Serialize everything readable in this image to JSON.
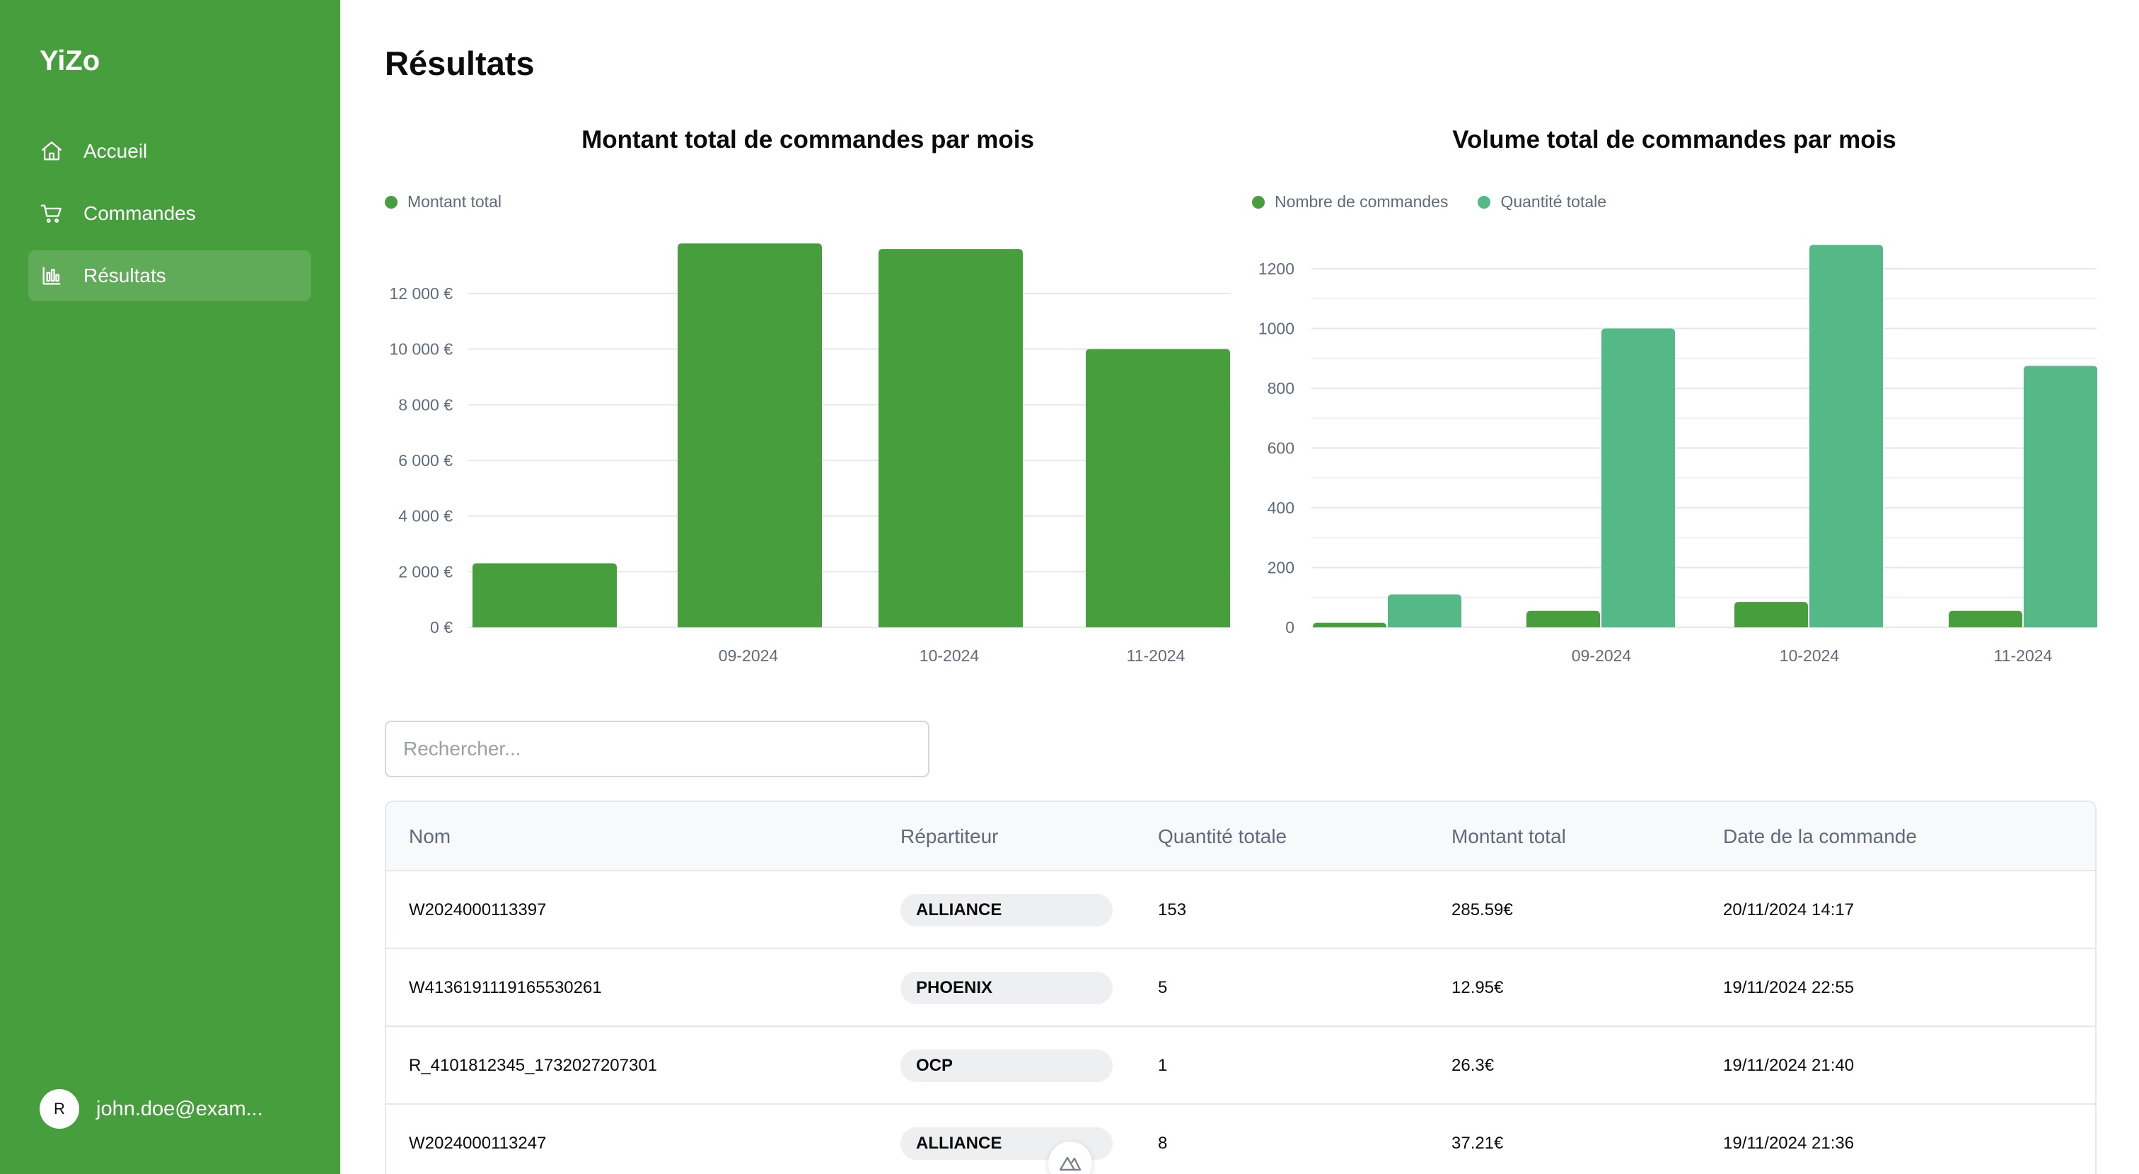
{
  "app": {
    "brand": "YiZo"
  },
  "sidebar": {
    "items": [
      {
        "label": "Accueil",
        "icon": "home-icon"
      },
      {
        "label": "Commandes",
        "icon": "cart-icon"
      },
      {
        "label": "Résultats",
        "icon": "bar-chart-icon",
        "active": true
      }
    ],
    "user": {
      "initial": "R",
      "email": "john.doe@exam..."
    }
  },
  "main": {
    "title": "Résultats"
  },
  "colors": {
    "sidebar": "#469e3d",
    "primary_bar": "#469e3d",
    "secondary_bar": "#54b887"
  },
  "chart_data": [
    {
      "type": "bar",
      "title": "Montant total de commandes par mois",
      "categories": [
        "",
        "09-2024",
        "10-2024",
        "11-2024"
      ],
      "series": [
        {
          "name": "Montant total",
          "values": [
            2300,
            13800,
            13600,
            10000
          ]
        }
      ],
      "y_ticks": [
        "0 €",
        "2 000 €",
        "4 000 €",
        "6 000 €",
        "8 000 €",
        "10 000 €",
        "12 000 €"
      ],
      "ylim": [
        0,
        14000
      ],
      "grid": true,
      "legend": "top-left"
    },
    {
      "type": "bar",
      "title": "Volume total de commandes par mois",
      "categories": [
        "",
        "09-2024",
        "10-2024",
        "11-2024"
      ],
      "series": [
        {
          "name": "Nombre de commandes",
          "values": [
            15,
            55,
            85,
            55
          ]
        },
        {
          "name": "Quantité totale",
          "values": [
            110,
            1000,
            1280,
            875
          ]
        }
      ],
      "y_ticks": [
        "0",
        "200",
        "400",
        "600",
        "800",
        "1000",
        "1200"
      ],
      "ylim": [
        0,
        1300
      ],
      "grid": true,
      "legend": "top-left"
    }
  ],
  "search": {
    "placeholder": "Rechercher..."
  },
  "table": {
    "headers": [
      "Nom",
      "Répartiteur",
      "Quantité totale",
      "Montant total",
      "Date de la commande"
    ],
    "rows": [
      [
        "W2024000113397",
        "ALLIANCE",
        "153",
        "285.59€",
        "20/11/2024 14:17"
      ],
      [
        "W4136191119165530261",
        "PHOENIX",
        "5",
        "12.95€",
        "19/11/2024 22:55"
      ],
      [
        "R_4101812345_1732027207301",
        "OCP",
        "1",
        "26.3€",
        "19/11/2024 21:40"
      ],
      [
        "W2024000113247",
        "ALLIANCE",
        "8",
        "37.21€",
        "19/11/2024 21:36"
      ]
    ]
  }
}
